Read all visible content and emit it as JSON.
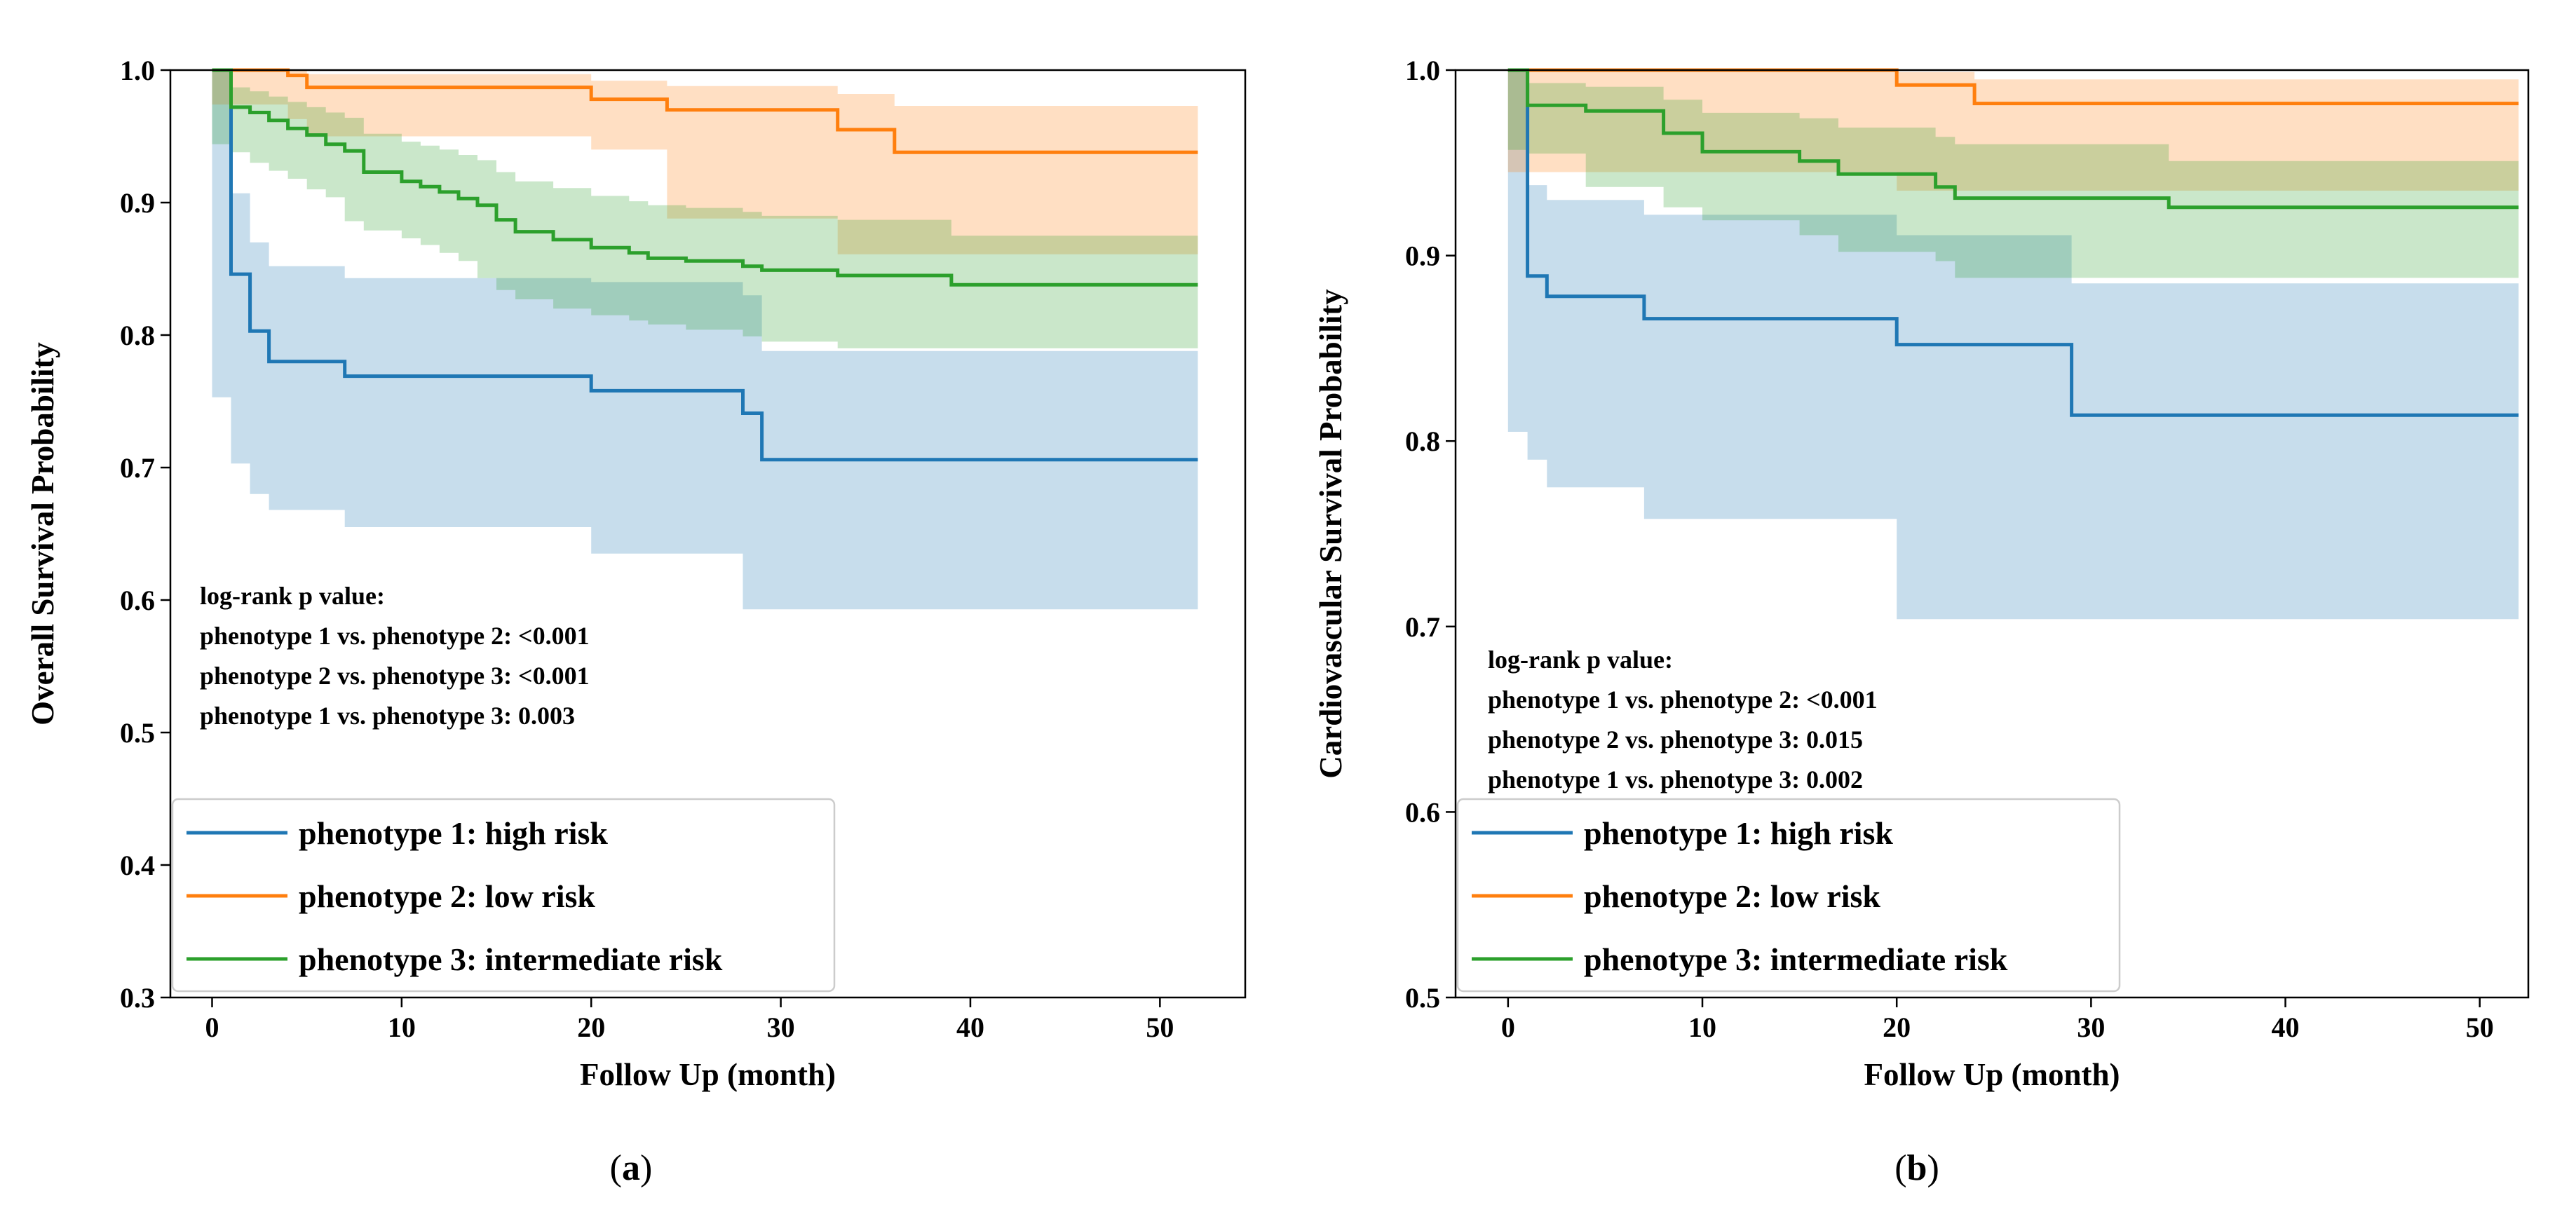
{
  "chart_data": [
    {
      "type": "line",
      "subtype": "kaplan-meier",
      "caption_letter": "a",
      "xlabel": "Follow Up (month)",
      "ylabel": "Overall Survival Probability",
      "xlim": [
        -2.2,
        54.5
      ],
      "ylim": [
        0.3,
        1.0
      ],
      "xticks": [
        0,
        10,
        20,
        30,
        40,
        50
      ],
      "xtick_labels": [
        "0",
        "10",
        "20",
        "30",
        "40",
        "50"
      ],
      "yticks": [
        0.3,
        0.4,
        0.5,
        0.6,
        0.7,
        0.8,
        0.9,
        1.0
      ],
      "ytick_labels": [
        "0.3",
        "0.4",
        "0.5",
        "0.6",
        "0.7",
        "0.8",
        "0.9",
        "1.0"
      ],
      "grid": false,
      "legend_position": "bottom-left",
      "annotation": [
        "log-rank p value:",
        "phenotype 1 vs. phenotype 2: <0.001",
        "phenotype 2 vs. phenotype 3: <0.001",
        "phenotype 1 vs. phenotype 3: 0.003"
      ],
      "series": [
        {
          "name": "phenotype 1: high risk",
          "color": "#1f77b4",
          "x": [
            0,
            1,
            2,
            3,
            7,
            20,
            28,
            29,
            52
          ],
          "y": [
            1.0,
            0.846,
            0.803,
            0.78,
            0.769,
            0.758,
            0.741,
            0.706,
            0.706
          ],
          "ci_low": [
            1.0,
            0.753,
            0.703,
            0.68,
            0.668,
            0.655,
            0.635,
            0.593,
            0.593
          ],
          "ci_high": [
            1.0,
            0.907,
            0.87,
            0.852,
            0.843,
            0.84,
            0.83,
            0.788,
            0.788
          ]
        },
        {
          "name": "phenotype 2: low risk",
          "color": "#ff7f0e",
          "x": [
            0,
            4,
            5,
            20,
            24,
            33,
            36,
            52
          ],
          "y": [
            1.0,
            0.996,
            0.987,
            0.978,
            0.97,
            0.955,
            0.938,
            0.938
          ],
          "ci_low": [
            1.0,
            0.974,
            0.963,
            0.95,
            0.94,
            0.888,
            0.861,
            0.861
          ],
          "ci_high": [
            1.0,
            1.0,
            0.997,
            0.992,
            0.988,
            0.982,
            0.973,
            0.973
          ]
        },
        {
          "name": "phenotype 3: intermediate risk",
          "color": "#2ca02c",
          "x": [
            0,
            1,
            2,
            3,
            4,
            5,
            6,
            7,
            8,
            10,
            11,
            12,
            13,
            14,
            15,
            16,
            18,
            20,
            22,
            23,
            25,
            28,
            29,
            33,
            39,
            52
          ],
          "y": [
            1.0,
            0.972,
            0.968,
            0.962,
            0.956,
            0.951,
            0.944,
            0.939,
            0.923,
            0.916,
            0.912,
            0.908,
            0.903,
            0.898,
            0.887,
            0.878,
            0.872,
            0.866,
            0.862,
            0.858,
            0.856,
            0.852,
            0.849,
            0.845,
            0.838,
            0.838
          ],
          "ci_low": [
            1.0,
            0.944,
            0.938,
            0.93,
            0.924,
            0.918,
            0.91,
            0.904,
            0.886,
            0.879,
            0.873,
            0.868,
            0.862,
            0.856,
            0.843,
            0.834,
            0.827,
            0.82,
            0.815,
            0.811,
            0.808,
            0.804,
            0.799,
            0.795,
            0.79,
            0.79
          ],
          "ci_high": [
            1.0,
            0.987,
            0.984,
            0.98,
            0.976,
            0.972,
            0.968,
            0.964,
            0.952,
            0.946,
            0.943,
            0.94,
            0.936,
            0.932,
            0.923,
            0.916,
            0.911,
            0.905,
            0.901,
            0.898,
            0.896,
            0.893,
            0.89,
            0.887,
            0.875,
            0.875
          ]
        }
      ]
    },
    {
      "type": "line",
      "subtype": "kaplan-meier",
      "caption_letter": "b",
      "xlabel": "Follow Up (month)",
      "ylabel": "Cardiovascular Survival Probability",
      "xlim": [
        -2.7,
        52.5
      ],
      "ylim": [
        0.5,
        1.0
      ],
      "xticks": [
        0,
        10,
        20,
        30,
        40,
        50
      ],
      "xtick_labels": [
        "0",
        "10",
        "20",
        "30",
        "40",
        "50"
      ],
      "yticks": [
        0.5,
        0.6,
        0.7,
        0.8,
        0.9,
        1.0
      ],
      "ytick_labels": [
        "0.5",
        "0.6",
        "0.7",
        "0.8",
        "0.9",
        "1.0"
      ],
      "grid": false,
      "legend_position": "bottom-left",
      "annotation": [
        "log-rank p value:",
        "phenotype 1 vs. phenotype 2: <0.001",
        "phenotype 2 vs. phenotype 3: 0.015",
        "phenotype 1 vs. phenotype 3: 0.002"
      ],
      "series": [
        {
          "name": "phenotype 1: high risk",
          "color": "#1f77b4",
          "x": [
            0,
            1,
            2,
            7,
            20,
            29,
            52
          ],
          "y": [
            1.0,
            0.889,
            0.878,
            0.866,
            0.852,
            0.814,
            0.814
          ],
          "ci_low": [
            1.0,
            0.805,
            0.79,
            0.775,
            0.758,
            0.704,
            0.704
          ],
          "ci_high": [
            1.0,
            0.938,
            0.93,
            0.922,
            0.911,
            0.885,
            0.885
          ]
        },
        {
          "name": "phenotype 2: low risk",
          "color": "#ff7f0e",
          "x": [
            0,
            20,
            24,
            52
          ],
          "y": [
            1.0,
            0.992,
            0.982,
            0.982
          ],
          "ci_low": [
            1.0,
            0.945,
            0.935,
            0.935
          ],
          "ci_high": [
            1.0,
            0.999,
            0.995,
            0.995
          ]
        },
        {
          "name": "phenotype 3: intermediate risk",
          "color": "#2ca02c",
          "x": [
            0,
            1,
            4,
            8,
            10,
            15,
            17,
            22,
            23,
            34,
            52
          ],
          "y": [
            1.0,
            0.981,
            0.978,
            0.966,
            0.956,
            0.951,
            0.944,
            0.937,
            0.931,
            0.926,
            0.926
          ],
          "ci_low": [
            1.0,
            0.957,
            0.955,
            0.937,
            0.926,
            0.919,
            0.911,
            0.902,
            0.897,
            0.888,
            0.888
          ],
          "ci_high": [
            1.0,
            0.993,
            0.991,
            0.984,
            0.977,
            0.974,
            0.969,
            0.964,
            0.96,
            0.951,
            0.951
          ]
        }
      ]
    }
  ]
}
